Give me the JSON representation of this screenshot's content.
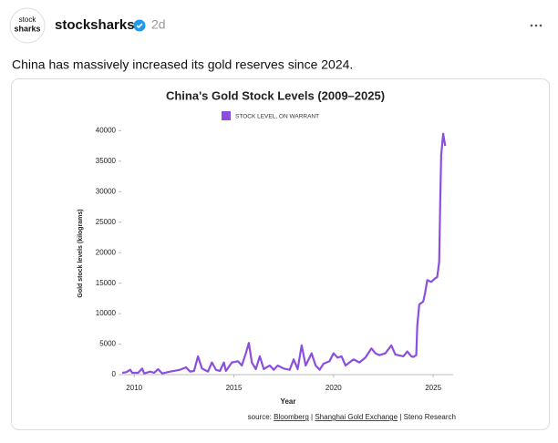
{
  "post": {
    "avatar_lines": [
      "stock",
      "sharks"
    ],
    "username": "stocksharks",
    "time": "2d",
    "text": "China has massively increased its gold reserves since 2024."
  },
  "chart_data": {
    "type": "line",
    "title": "China's Gold Stock Levels (2009–2025)",
    "x_label": "Year",
    "y_label": "Gold stock levels (kilograms)",
    "source_parts": [
      "source:",
      "Bloomberg",
      "|",
      "Shanghai Gold Exchange",
      "|",
      "Steno Research"
    ],
    "x": [
      2009.4,
      2009.6,
      2009.8,
      2009.9,
      2010.2,
      2010.4,
      2010.5,
      2010.8,
      2011.0,
      2011.2,
      2011.4,
      2011.8,
      2012.3,
      2012.6,
      2012.8,
      2013.0,
      2013.2,
      2013.4,
      2013.7,
      2013.9,
      2014.1,
      2014.3,
      2014.5,
      2014.6,
      2014.9,
      2015.2,
      2015.4,
      2015.6,
      2015.75,
      2015.9,
      2016.1,
      2016.3,
      2016.5,
      2016.8,
      2017.0,
      2017.2,
      2017.5,
      2017.8,
      2018.0,
      2018.2,
      2018.4,
      2018.6,
      2018.9,
      2019.1,
      2019.3,
      2019.5,
      2019.8,
      2020.0,
      2020.2,
      2020.4,
      2020.6,
      2020.8,
      2021.0,
      2021.3,
      2021.6,
      2021.9,
      2022.1,
      2022.3,
      2022.6,
      2022.9,
      2023.1,
      2023.5,
      2023.7,
      2023.9,
      2024.0,
      2024.15,
      2024.2,
      2024.3,
      2024.5,
      2024.6,
      2024.7,
      2024.9,
      2025.1,
      2025.2,
      2025.3,
      2025.35,
      2025.4,
      2025.5,
      2025.6
    ],
    "series": [
      {
        "name": "STOCK LEVEL, ON WARRANT",
        "color": "#8b4fe0",
        "values": [
          300,
          400,
          800,
          300,
          300,
          1000,
          200,
          500,
          300,
          900,
          200,
          500,
          800,
          1200,
          500,
          600,
          3000,
          1000,
          500,
          2000,
          800,
          600,
          2000,
          600,
          2000,
          2200,
          1500,
          3500,
          5200,
          2000,
          900,
          3000,
          900,
          1500,
          800,
          1500,
          1000,
          800,
          2500,
          900,
          4800,
          1500,
          3500,
          1500,
          800,
          1800,
          2200,
          3500,
          2800,
          3000,
          1500,
          2000,
          2500,
          2000,
          2800,
          4300,
          3500,
          3200,
          3500,
          4800,
          3300,
          3000,
          3800,
          3000,
          2900,
          3200,
          8000,
          11500,
          12000,
          13500,
          15500,
          15200,
          15800,
          16000,
          18500,
          28000,
          36000,
          39500,
          37500
        ]
      }
    ],
    "xlim": [
      2009.35,
      2026.0
    ],
    "ylim": [
      0,
      42000
    ],
    "xticks": [
      2010,
      2015,
      2020,
      2025
    ],
    "yticks": [
      0,
      5000,
      10000,
      15000,
      20000,
      25000,
      30000,
      35000,
      40000
    ]
  }
}
